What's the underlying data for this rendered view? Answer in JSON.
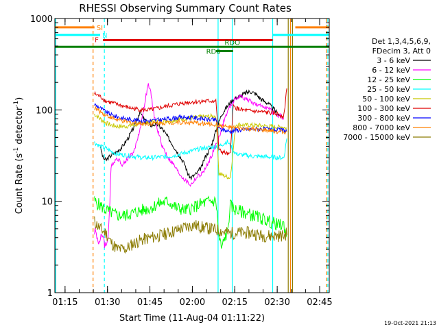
{
  "chart_data": {
    "type": "line",
    "title": "RHESSI Observing Summary Count Rates",
    "xlabel": "Start Time (11-Aug-04 01:11:22)",
    "ylabel": "Count Rate (s",
    "ylabel_sup": "-1",
    "ylabel_rest": " detector",
    "ylabel_sup2": "-1",
    "ylabel_close": ")",
    "x_unit": "minutes since 01:11:22",
    "xlim": [
      0,
      97
    ],
    "ylim": [
      1,
      1000
    ],
    "y_scale": "log",
    "x_ticks": [
      {
        "t": 3.6,
        "label": "01:15"
      },
      {
        "t": 18.6,
        "label": "01:30"
      },
      {
        "t": 33.6,
        "label": "01:45"
      },
      {
        "t": 48.6,
        "label": "02:00"
      },
      {
        "t": 63.6,
        "label": "02:15"
      },
      {
        "t": 78.6,
        "label": "02:30"
      },
      {
        "t": 93.6,
        "label": "02:45"
      }
    ],
    "y_ticks": [
      {
        "v": 1,
        "label": "1"
      },
      {
        "v": 10,
        "label": "10"
      },
      {
        "v": 100,
        "label": "100"
      },
      {
        "v": 1000,
        "label": "1000"
      }
    ],
    "legend_header": [
      "Det 1,3,4,5,6,9,",
      "FDecim 3, Att 0"
    ],
    "legend_position": "right",
    "series": [
      {
        "name": "3 - 6 keV",
        "color": "#000000",
        "t": [
          16,
          17,
          18,
          19,
          20,
          22,
          24,
          26,
          28,
          30,
          32,
          34,
          36,
          38,
          40,
          42,
          44,
          46,
          47,
          48,
          50,
          52,
          53,
          55,
          57,
          59,
          61,
          63,
          65,
          67,
          69,
          71,
          73,
          75,
          77,
          79,
          80
        ],
        "v": [
          40,
          30,
          28,
          30,
          32,
          35,
          40,
          50,
          65,
          95,
          75,
          68,
          70,
          62,
          50,
          40,
          32,
          25,
          20,
          18,
          20,
          24,
          30,
          38,
          60,
          90,
          110,
          130,
          140,
          150,
          160,
          150,
          130,
          120,
          105,
          90,
          85
        ]
      },
      {
        "name": "6 - 12 keV",
        "color": "#ff00ff",
        "t": [
          14,
          15,
          16,
          17,
          18,
          19,
          20,
          22,
          24,
          26,
          28,
          30,
          32,
          33,
          34,
          35,
          36,
          38,
          40,
          42,
          44,
          46,
          48,
          50,
          52,
          54,
          56,
          58,
          60,
          62,
          64,
          66,
          68,
          70,
          72,
          74,
          76,
          78,
          80,
          81
        ],
        "v": [
          5,
          4,
          3.5,
          4.5,
          3,
          5,
          25,
          30,
          25,
          30,
          35,
          60,
          130,
          190,
          150,
          90,
          65,
          40,
          30,
          25,
          20,
          17,
          15,
          18,
          20,
          25,
          35,
          50,
          80,
          110,
          135,
          140,
          130,
          120,
          110,
          110,
          100,
          90,
          85,
          80
        ]
      },
      {
        "name": "12 - 25 keV",
        "color": "#00ff00",
        "t": [
          14,
          16,
          18,
          20,
          22,
          25,
          28,
          31,
          34,
          37,
          40,
          43,
          46,
          49,
          52,
          55,
          57,
          58,
          59,
          60,
          61,
          62,
          64,
          67,
          70,
          73,
          76,
          79,
          81,
          82
        ],
        "v": [
          10,
          9,
          8,
          7.5,
          7,
          7,
          7.5,
          8,
          8.5,
          9.5,
          10,
          8.5,
          8,
          8.5,
          9.5,
          10,
          10,
          4,
          3,
          4,
          4.5,
          9,
          8,
          7.5,
          7,
          6.5,
          6,
          5.5,
          5.5,
          4
        ]
      },
      {
        "name": "25 - 50 keV",
        "color": "#00ffff",
        "t": [
          14,
          16,
          18,
          20,
          22,
          25,
          28,
          31,
          34,
          37,
          40,
          43,
          46,
          49,
          52,
          55,
          58,
          61,
          64,
          67,
          70,
          73,
          76,
          79,
          81,
          82
        ],
        "v": [
          44,
          40,
          38,
          35,
          33,
          32,
          31,
          30,
          30,
          30.5,
          31,
          32,
          34,
          36,
          38,
          39,
          40,
          45,
          33,
          32,
          31,
          31,
          30.5,
          30,
          30,
          50
        ]
      },
      {
        "name": "50 - 100 keV",
        "color": "#c8c800",
        "t": [
          14,
          16,
          18,
          20,
          22,
          25,
          28,
          31,
          34,
          37,
          40,
          43,
          46,
          49,
          52,
          55,
          57,
          58,
          60,
          62,
          64,
          67,
          70,
          73,
          76,
          79,
          81,
          82
        ],
        "v": [
          90,
          80,
          72,
          68,
          66,
          66,
          68,
          72,
          74,
          75,
          76,
          78,
          80,
          82,
          84,
          85,
          86,
          20,
          19,
          18,
          70,
          68,
          68,
          67,
          66,
          65,
          65,
          62
        ]
      },
      {
        "name": "100 - 300 keV",
        "color": "#e00000",
        "t": [
          14,
          16,
          18,
          20,
          22,
          25,
          28,
          31,
          34,
          37,
          40,
          43,
          46,
          49,
          52,
          55,
          57,
          58,
          60,
          62,
          63,
          64,
          66,
          68,
          70,
          73,
          76,
          79,
          81,
          82
        ],
        "v": [
          150,
          140,
          125,
          120,
          115,
          108,
          103,
          100,
          100,
          105,
          110,
          115,
          120,
          122,
          124,
          125,
          125,
          36,
          34,
          32,
          110,
          105,
          100,
          98,
          97,
          95,
          93,
          90,
          85,
          180
        ]
      },
      {
        "name": "300 - 800 keV",
        "color": "#0000ff",
        "t": [
          14,
          16,
          18,
          20,
          22,
          25,
          28,
          31,
          34,
          37,
          40,
          43,
          46,
          49,
          52,
          55,
          57,
          58,
          60,
          62,
          64,
          67,
          70,
          73,
          76,
          79,
          81,
          82
        ],
        "v": [
          115,
          105,
          95,
          88,
          84,
          80,
          78,
          76,
          76,
          78,
          80,
          82,
          83,
          82,
          80,
          78,
          77,
          62,
          60,
          58,
          60,
          61,
          62,
          62,
          61,
          60,
          60,
          58
        ]
      },
      {
        "name": "800 - 7000 keV",
        "color": "#ff8000",
        "t": [
          14,
          16,
          18,
          20,
          22,
          25,
          28,
          31,
          34,
          37,
          40,
          43,
          46,
          49,
          52,
          55,
          58,
          61,
          64,
          67,
          70,
          73,
          76,
          79,
          81,
          82
        ],
        "v": [
          105,
          96,
          88,
          82,
          78,
          74,
          72,
          71,
          71,
          72,
          72.5,
          73,
          73,
          72,
          71,
          70,
          68,
          65,
          63,
          62,
          61,
          60,
          59,
          58,
          57,
          56
        ]
      },
      {
        "name": "7000 - 15000 keV",
        "color": "#8b7b00",
        "t": [
          14,
          16,
          18,
          20,
          22,
          25,
          28,
          31,
          34,
          37,
          40,
          43,
          46,
          49,
          52,
          55,
          58,
          61,
          64,
          67,
          70,
          73,
          76,
          79,
          81,
          82
        ],
        "v": [
          6,
          5,
          4.5,
          3.5,
          3,
          3,
          3.5,
          3.8,
          4,
          4.2,
          4.5,
          4.8,
          5.2,
          5.5,
          5.2,
          5,
          4.8,
          4.5,
          4.5,
          4.5,
          4.5,
          4.2,
          4.2,
          4.2,
          4.2,
          4.5
        ]
      }
    ],
    "flags": [
      {
        "label": "SI",
        "color": "#ff8000",
        "t_start": 0,
        "t_end": 14,
        "t_start2": 85,
        "t_end2": 97,
        "v": 800
      },
      {
        "label": "N",
        "color": "#00ffff",
        "t_start": 0,
        "t_end": 16,
        "t_start2": 77,
        "t_end2": 97,
        "v": 660
      },
      {
        "label": "F",
        "color": "#e00000",
        "t_start": 17,
        "t_end": 77,
        "v": 580
      },
      {
        "label": "RDO",
        "color": "#008000",
        "t_start": 0,
        "t_end": 97,
        "v": 490
      },
      {
        "label": "RD6",
        "color": "#008000",
        "t_start": 57,
        "t_end": 63,
        "v": 440
      }
    ],
    "vertical_markers": [
      {
        "t": 13.5,
        "color": "#ff8000",
        "style": "dashed"
      },
      {
        "t": 17.5,
        "color": "#00ffff",
        "style": "dashed"
      },
      {
        "t": 96.0,
        "color": "#ff8000",
        "style": "dashed"
      },
      {
        "t": 96.5,
        "color": "#00ffff",
        "style": "dashed"
      },
      {
        "t": 0.3,
        "color": "#00ffff",
        "style": "solid"
      },
      {
        "t": 57.7,
        "color": "#00ffff",
        "style": "solid"
      },
      {
        "t": 62.7,
        "color": "#00ffff",
        "style": "solid"
      },
      {
        "t": 77.0,
        "color": "#00ffff",
        "style": "solid"
      },
      {
        "t": 82.5,
        "color": "#8b7b00",
        "style": "solid"
      },
      {
        "t": 83.3,
        "color": "#ff8000",
        "style": "solid"
      },
      {
        "t": 84.0,
        "color": "#8b7b00",
        "style": "solid"
      }
    ]
  },
  "footer": {
    "timestamp": "19-Oct-2021 21:13"
  }
}
